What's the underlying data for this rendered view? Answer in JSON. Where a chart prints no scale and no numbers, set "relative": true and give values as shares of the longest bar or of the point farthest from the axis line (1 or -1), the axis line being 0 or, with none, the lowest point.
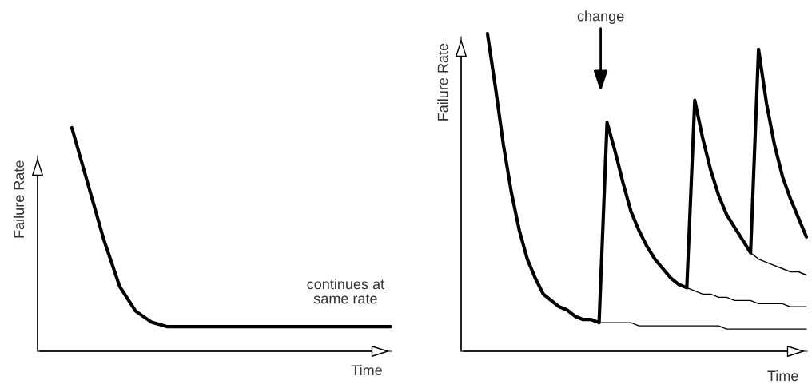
{
  "chart_data": [
    {
      "type": "line",
      "ylabel": "Failure Rate",
      "xlabel": "Time",
      "relative": true,
      "categories": [
        null,
        null,
        null,
        null,
        null,
        null,
        null,
        null,
        null,
        null,
        null,
        null,
        null,
        null,
        null,
        null,
        null,
        null,
        null,
        null,
        null
      ],
      "series": [
        {
          "color": "#000000",
          "values": [
            1.0,
            0.75,
            0.5,
            0.29,
            0.18,
            0.13,
            0.11,
            0.11,
            0.11,
            0.11,
            0.11,
            0.11,
            0.11,
            0.11,
            0.11,
            0.11,
            0.11,
            0.11,
            0.11,
            0.11,
            0.11
          ]
        }
      ],
      "annotations": [
        "continues at\nsame rate"
      ]
    },
    {
      "type": "line",
      "ylabel": "Failure Rate",
      "xlabel": "Time",
      "relative": true,
      "categories": [
        null,
        null,
        null,
        null,
        null,
        null,
        null,
        null,
        null,
        null,
        null,
        null,
        null,
        null,
        null,
        null,
        null,
        null,
        null,
        null,
        null,
        null,
        null,
        null,
        null,
        null,
        null,
        null,
        null,
        null,
        null,
        null,
        null,
        null,
        null,
        null,
        null,
        null,
        null,
        null,
        null
      ],
      "series": [
        {
          "color": "#000000",
          "values": [
            1.0,
            0.83,
            0.65,
            0.5,
            0.38,
            0.29,
            0.23,
            0.18,
            0.16,
            0.14,
            0.13,
            0.11,
            0.1,
            0.1,
            0.09,
            0.72,
            0.63,
            0.53,
            0.44,
            0.38,
            0.33,
            0.29,
            0.26,
            0.23,
            0.21,
            0.2,
            0.79,
            0.67,
            0.57,
            0.49,
            0.43,
            0.39,
            0.35,
            0.31,
            0.95,
            0.78,
            0.65,
            0.55,
            0.48,
            0.42,
            0.36
          ]
        },
        {
          "color": "#000000",
          "values": [
            null,
            null,
            null,
            null,
            null,
            null,
            null,
            null,
            null,
            null,
            null,
            null,
            null,
            null,
            0.09,
            0.09,
            0.09,
            0.09,
            0.09,
            0.08,
            0.08,
            0.08,
            0.08,
            0.08,
            0.08,
            0.08,
            0.08,
            0.08,
            0.08,
            0.08,
            0.07,
            0.07,
            0.07,
            0.07,
            0.07,
            0.07,
            0.07,
            0.07,
            0.07,
            0.07,
            0.07
          ]
        },
        {
          "color": "#000000",
          "values": [
            null,
            null,
            null,
            null,
            null,
            null,
            null,
            null,
            null,
            null,
            null,
            null,
            null,
            null,
            null,
            null,
            null,
            null,
            null,
            null,
            null,
            null,
            null,
            null,
            null,
            0.2,
            0.19,
            0.18,
            0.18,
            0.17,
            0.17,
            0.16,
            0.16,
            0.16,
            0.15,
            0.15,
            0.15,
            0.15,
            0.14,
            0.14,
            0.14
          ]
        },
        {
          "color": "#000000",
          "values": [
            null,
            null,
            null,
            null,
            null,
            null,
            null,
            null,
            null,
            null,
            null,
            null,
            null,
            null,
            null,
            null,
            null,
            null,
            null,
            null,
            null,
            null,
            null,
            null,
            null,
            null,
            null,
            null,
            null,
            null,
            null,
            null,
            null,
            0.31,
            0.29,
            0.28,
            0.27,
            0.26,
            0.25,
            0.25,
            0.24
          ]
        }
      ],
      "annotations": [
        "change"
      ]
    }
  ]
}
